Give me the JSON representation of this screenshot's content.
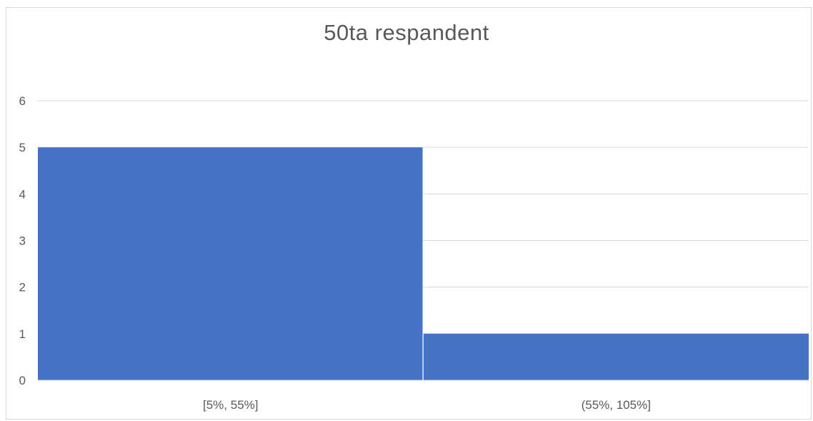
{
  "chart_data": {
    "type": "bar",
    "title": "50ta  respandent",
    "categories": [
      "[5%, 55%]",
      "(55%, 105%]"
    ],
    "values": [
      5,
      1
    ],
    "xlabel": "",
    "ylabel": "",
    "ylim": [
      0,
      6
    ],
    "yticks": [
      0,
      1,
      2,
      3,
      4,
      5,
      6
    ],
    "grid": true,
    "bar_color": "#4472C4",
    "grid_color": "#d9d9d9",
    "text_color": "#595959"
  }
}
